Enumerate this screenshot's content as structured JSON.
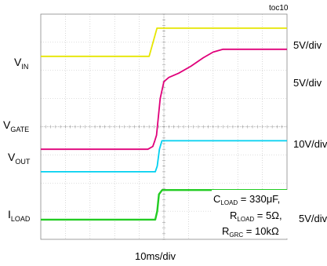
{
  "chart_data": {
    "type": "line",
    "tag": "toc10",
    "x_scale_label": "10ms/div",
    "grid": true,
    "divisions": {
      "x": 10,
      "y": 8
    },
    "channel_labels": [
      {
        "name": "V",
        "sub": "IN"
      },
      {
        "name": "V",
        "sub": "GATE"
      },
      {
        "name": "V",
        "sub": "OUT"
      },
      {
        "name": "I",
        "sub": "LOAD"
      }
    ],
    "scale_labels": [
      "5V/div",
      "5V/div",
      "10V/div",
      "5V/div"
    ],
    "annotation": [
      {
        "name": "C",
        "sub": "LOAD",
        "rest": " = 330μF,"
      },
      {
        "name": "R",
        "sub": "LOAD",
        "rest": " = 5Ω,"
      },
      {
        "name": "R",
        "sub": "GRC",
        "rest": " = 10kΩ"
      }
    ],
    "series": [
      {
        "color": "#e6e600",
        "x": [
          0,
          4.4,
          4.72,
          10
        ],
        "y": [
          6.5,
          6.5,
          7.5,
          7.5
        ]
      },
      {
        "color": "#e0007a",
        "x": [
          0,
          4.35,
          4.55,
          4.63,
          4.7,
          4.85,
          5.0,
          5.2,
          5.6,
          6.1,
          6.6,
          7.0,
          7.4,
          10
        ],
        "y": [
          3.2,
          3.2,
          3.3,
          3.5,
          3.7,
          5.0,
          5.6,
          5.75,
          5.9,
          6.15,
          6.45,
          6.65,
          6.75,
          6.75
        ]
      },
      {
        "color": "#00d0f0",
        "x": [
          0,
          4.65,
          4.73,
          4.82,
          4.92,
          10
        ],
        "y": [
          2.4,
          2.4,
          2.6,
          3.2,
          3.5,
          3.5
        ]
      },
      {
        "color": "#22cc22",
        "x": [
          0,
          4.65,
          4.73,
          4.8,
          4.93,
          10
        ],
        "y": [
          0.7,
          0.7,
          1.0,
          1.6,
          1.75,
          1.75
        ]
      }
    ]
  }
}
